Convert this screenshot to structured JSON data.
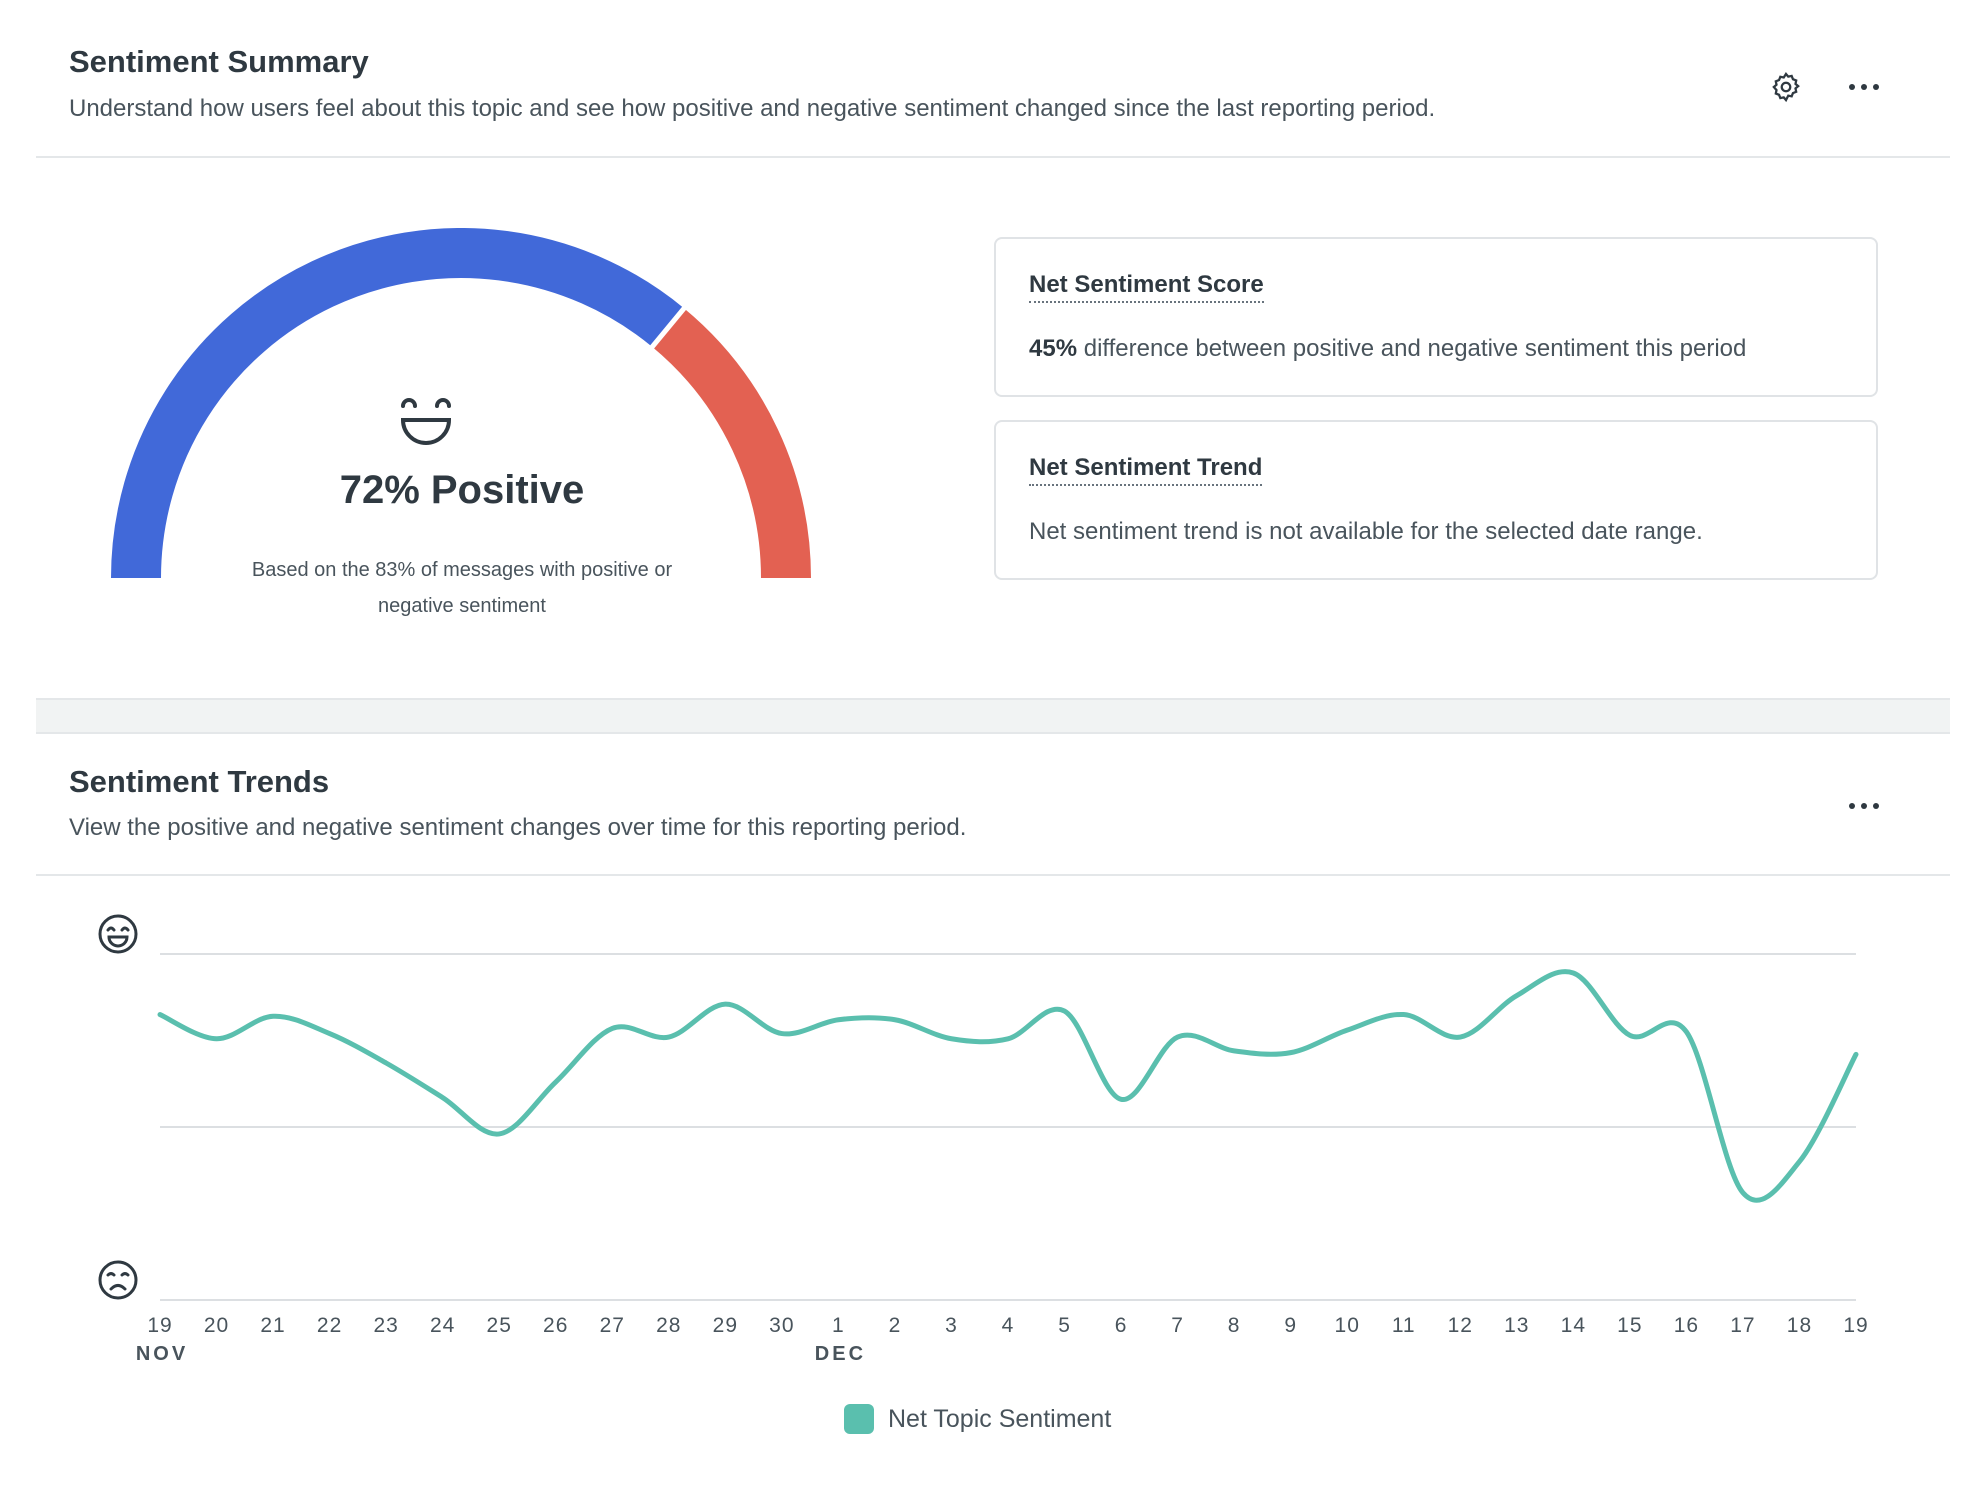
{
  "summary": {
    "title": "Sentiment Summary",
    "description": "Understand how users feel about this topic and see how positive and negative sentiment changed since the last reporting period.",
    "gauge": {
      "positive_pct": 72,
      "value_label": "72% Positive",
      "note": "Based on the 83% of messages with positive or negative sentiment",
      "positive_color": "#4169d9",
      "negative_color": "#e36152",
      "face_icon": "grinning-face-icon"
    },
    "score": {
      "title": "Net Sentiment Score",
      "value": "45%",
      "text": " difference between positive and negative sentiment this period"
    },
    "trend": {
      "title": "Net Sentiment Trend",
      "text": "Net sentiment trend is not available for the selected date range."
    }
  },
  "trends": {
    "title": "Sentiment Trends",
    "description": "View the positive and negative sentiment changes over time for this reporting period."
  },
  "chart_data": {
    "type": "line",
    "title": "Sentiment Trends",
    "series": [
      {
        "name": "Net Topic Sentiment",
        "color": "#5abfae",
        "values": [
          0.65,
          0.51,
          0.64,
          0.54,
          0.37,
          0.17,
          -0.04,
          0.26,
          0.57,
          0.52,
          0.71,
          0.54,
          0.62,
          0.62,
          0.51,
          0.51,
          0.67,
          0.16,
          0.52,
          0.44,
          0.43,
          0.56,
          0.65,
          0.52,
          0.76,
          0.89,
          0.53,
          0.55,
          -0.38,
          -0.2,
          0.42
        ]
      }
    ],
    "x": [
      "19",
      "20",
      "21",
      "22",
      "23",
      "24",
      "25",
      "26",
      "27",
      "28",
      "29",
      "30",
      "1",
      "2",
      "3",
      "4",
      "5",
      "6",
      "7",
      "8",
      "9",
      "10",
      "11",
      "12",
      "13",
      "14",
      "15",
      "16",
      "17",
      "18",
      "19"
    ],
    "month_labels": [
      {
        "index": 0,
        "label": "NOV"
      },
      {
        "index": 12,
        "label": "DEC"
      }
    ],
    "ylim": [
      -1,
      1
    ],
    "y_axis_icons": {
      "top": "happy-face-icon",
      "bottom": "sad-face-icon"
    },
    "grid": true,
    "legend": "bottom-center",
    "xlabel": "",
    "ylabel": ""
  }
}
